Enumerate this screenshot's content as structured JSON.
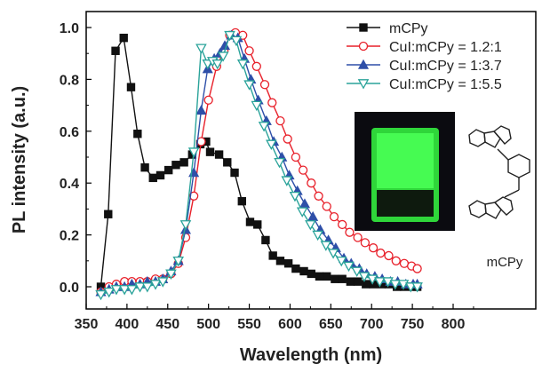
{
  "chart_data": {
    "type": "line",
    "xlabel": "Wavelength (nm)",
    "ylabel": "PL intensity (a.u.)",
    "xlim": [
      350,
      850
    ],
    "ylim": [
      -0.05,
      1.08
    ],
    "xticks": [
      350,
      400,
      450,
      500,
      550,
      600,
      650,
      700,
      750,
      800
    ],
    "yticks": [
      0.0,
      0.2,
      0.4,
      0.6,
      0.8,
      1.0
    ],
    "tick_labels_x": [
      "350",
      "400",
      "450",
      "500",
      "550",
      "600",
      "650",
      "700",
      "750",
      "800"
    ],
    "tick_labels_y": [
      "0.0",
      "0.2",
      "0.4",
      "0.6",
      "0.8",
      "1.0"
    ],
    "grid": false,
    "legend_position": "top-right",
    "series": [
      {
        "name": "mCPy",
        "color": "#111111",
        "marker": "square-filled",
        "points": [
          [
            368,
            0.0
          ],
          [
            377,
            0.28
          ],
          [
            386,
            0.91
          ],
          [
            396,
            0.96
          ],
          [
            405,
            0.77
          ],
          [
            413,
            0.59
          ],
          [
            422,
            0.46
          ],
          [
            432,
            0.42
          ],
          [
            441,
            0.43
          ],
          [
            451,
            0.45
          ],
          [
            460,
            0.47
          ],
          [
            470,
            0.48
          ],
          [
            480,
            0.51
          ],
          [
            490,
            0.55
          ],
          [
            497,
            0.56
          ],
          [
            502,
            0.52
          ],
          [
            513,
            0.51
          ],
          [
            523,
            0.48
          ],
          [
            532,
            0.44
          ],
          [
            541,
            0.33
          ],
          [
            551,
            0.25
          ],
          [
            560,
            0.24
          ],
          [
            570,
            0.18
          ],
          [
            579,
            0.12
          ],
          [
            588,
            0.1
          ],
          [
            598,
            0.09
          ],
          [
            607,
            0.07
          ],
          [
            617,
            0.06
          ],
          [
            626,
            0.05
          ],
          [
            636,
            0.04
          ],
          [
            645,
            0.04
          ],
          [
            655,
            0.03
          ],
          [
            664,
            0.03
          ],
          [
            674,
            0.02
          ],
          [
            683,
            0.02
          ],
          [
            693,
            0.01
          ],
          [
            702,
            0.01
          ],
          [
            712,
            0.01
          ],
          [
            721,
            0.01
          ],
          [
            731,
            0.0
          ],
          [
            740,
            0.0
          ],
          [
            750,
            0.0
          ],
          [
            756,
            0.0
          ]
        ]
      },
      {
        "name": "CuI:mCPy = 1.2:1",
        "color": "#e8202a",
        "marker": "circle-open",
        "points": [
          [
            368,
            -0.02
          ],
          [
            378,
            0.0
          ],
          [
            387,
            0.01
          ],
          [
            397,
            0.02
          ],
          [
            406,
            0.02
          ],
          [
            416,
            0.02
          ],
          [
            425,
            0.02
          ],
          [
            435,
            0.03
          ],
          [
            444,
            0.03
          ],
          [
            454,
            0.05
          ],
          [
            463,
            0.09
          ],
          [
            472,
            0.19
          ],
          [
            482,
            0.35
          ],
          [
            491,
            0.56
          ],
          [
            500,
            0.72
          ],
          [
            510,
            0.85
          ],
          [
            519,
            0.91
          ],
          [
            526,
            0.97
          ],
          [
            533,
            0.98
          ],
          [
            542,
            0.97
          ],
          [
            550,
            0.91
          ],
          [
            559,
            0.85
          ],
          [
            569,
            0.78
          ],
          [
            578,
            0.71
          ],
          [
            588,
            0.64
          ],
          [
            597,
            0.57
          ],
          [
            607,
            0.5
          ],
          [
            616,
            0.45
          ],
          [
            626,
            0.4
          ],
          [
            635,
            0.35
          ],
          [
            645,
            0.31
          ],
          [
            654,
            0.27
          ],
          [
            664,
            0.24
          ],
          [
            673,
            0.21
          ],
          [
            683,
            0.19
          ],
          [
            692,
            0.17
          ],
          [
            702,
            0.15
          ],
          [
            711,
            0.13
          ],
          [
            721,
            0.12
          ],
          [
            730,
            0.1
          ],
          [
            740,
            0.09
          ],
          [
            749,
            0.08
          ],
          [
            756,
            0.07
          ]
        ]
      },
      {
        "name": "CuI:mCPy = 1:3.7",
        "color": "#2e4fa8",
        "marker": "triangle-up-filled",
        "points": [
          [
            368,
            -0.02
          ],
          [
            378,
            -0.01
          ],
          [
            387,
            0.0
          ],
          [
            397,
            0.0
          ],
          [
            406,
            0.01
          ],
          [
            416,
            0.01
          ],
          [
            425,
            0.02
          ],
          [
            435,
            0.02
          ],
          [
            444,
            0.03
          ],
          [
            454,
            0.06
          ],
          [
            463,
            0.1
          ],
          [
            472,
            0.22
          ],
          [
            482,
            0.44
          ],
          [
            491,
            0.68
          ],
          [
            499,
            0.84
          ],
          [
            507,
            0.88
          ],
          [
            514,
            0.9
          ],
          [
            520,
            0.93
          ],
          [
            528,
            0.97
          ],
          [
            536,
            0.96
          ],
          [
            544,
            0.88
          ],
          [
            552,
            0.8
          ],
          [
            561,
            0.72
          ],
          [
            571,
            0.64
          ],
          [
            580,
            0.56
          ],
          [
            590,
            0.5
          ],
          [
            599,
            0.43
          ],
          [
            609,
            0.37
          ],
          [
            618,
            0.32
          ],
          [
            628,
            0.27
          ],
          [
            637,
            0.22
          ],
          [
            647,
            0.18
          ],
          [
            656,
            0.15
          ],
          [
            666,
            0.11
          ],
          [
            675,
            0.09
          ],
          [
            685,
            0.07
          ],
          [
            694,
            0.05
          ],
          [
            704,
            0.04
          ],
          [
            713,
            0.03
          ],
          [
            723,
            0.02
          ],
          [
            732,
            0.02
          ],
          [
            742,
            0.01
          ],
          [
            751,
            0.01
          ],
          [
            756,
            0.01
          ]
        ]
      },
      {
        "name": "CuI:mCPy = 1:5.5",
        "color": "#2aa39a",
        "marker": "triangle-down-open",
        "points": [
          [
            368,
            -0.03
          ],
          [
            378,
            -0.02
          ],
          [
            387,
            -0.01
          ],
          [
            397,
            -0.01
          ],
          [
            406,
            -0.01
          ],
          [
            416,
            0.0
          ],
          [
            425,
            0.0
          ],
          [
            435,
            0.01
          ],
          [
            444,
            0.02
          ],
          [
            454,
            0.05
          ],
          [
            463,
            0.1
          ],
          [
            472,
            0.24
          ],
          [
            482,
            0.52
          ],
          [
            491,
            0.92
          ],
          [
            499,
            0.86
          ],
          [
            505,
            0.87
          ],
          [
            511,
            0.86
          ],
          [
            518,
            0.89
          ],
          [
            526,
            0.97
          ],
          [
            534,
            0.95
          ],
          [
            542,
            0.86
          ],
          [
            550,
            0.78
          ],
          [
            559,
            0.7
          ],
          [
            568,
            0.62
          ],
          [
            577,
            0.55
          ],
          [
            587,
            0.48
          ],
          [
            596,
            0.41
          ],
          [
            606,
            0.35
          ],
          [
            615,
            0.29
          ],
          [
            625,
            0.24
          ],
          [
            634,
            0.2
          ],
          [
            644,
            0.16
          ],
          [
            653,
            0.13
          ],
          [
            663,
            0.1
          ],
          [
            672,
            0.08
          ],
          [
            682,
            0.06
          ],
          [
            691,
            0.04
          ],
          [
            701,
            0.03
          ],
          [
            710,
            0.02
          ],
          [
            720,
            0.02
          ],
          [
            729,
            0.01
          ],
          [
            739,
            0.01
          ],
          [
            748,
            0.0
          ],
          [
            756,
            0.0
          ]
        ]
      }
    ],
    "inset": {
      "photo_description": "glowing green emitting film on dark background",
      "molecule_label": "mCPy"
    }
  },
  "colors": {
    "frame": "#000000",
    "photo_bg": "#0b0b10",
    "photo_glow": "#3cff4a"
  }
}
